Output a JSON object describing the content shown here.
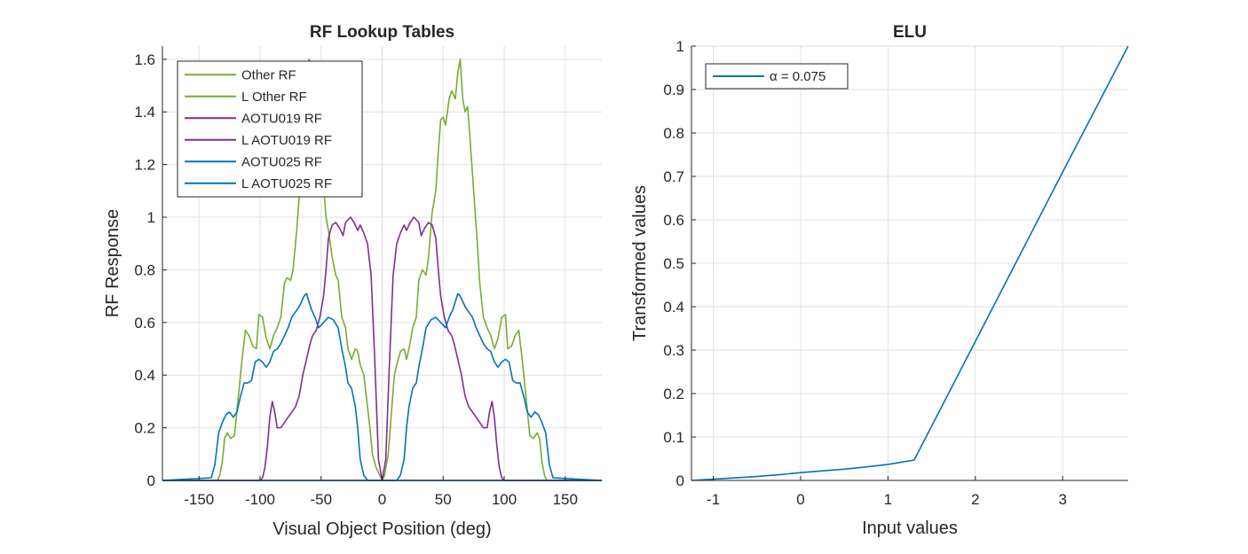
{
  "chart_data": [
    {
      "type": "line",
      "title": "RF Lookup Tables",
      "xlabel": "Visual Object Position (deg)",
      "ylabel": "RF Response",
      "xlim": [
        -180,
        180
      ],
      "ylim": [
        0,
        1.65
      ],
      "xticks": [
        -150,
        -100,
        -50,
        0,
        50,
        100,
        150
      ],
      "yticks": [
        0,
        0.2,
        0.4,
        0.6,
        0.8,
        1,
        1.2,
        1.4,
        1.6
      ],
      "xtick_labels": [
        "-150",
        "-100",
        "-50",
        "0",
        "50",
        "100",
        "150"
      ],
      "ytick_labels": [
        "0",
        "0.2",
        "0.4",
        "0.6",
        "0.8",
        "1",
        "1.2",
        "1.4",
        "1.6"
      ],
      "grid": true,
      "legend_position": "top-left",
      "series": [
        {
          "name": "Other RF",
          "color": "#77AC30",
          "x": [
            0,
            2,
            5,
            8,
            10,
            12,
            15,
            18,
            20,
            22,
            25,
            28,
            30,
            33,
            36,
            38,
            41,
            44,
            46,
            48,
            50,
            52,
            55,
            57,
            60,
            62,
            64,
            66,
            68,
            70,
            72,
            75,
            78,
            80,
            83,
            86,
            89,
            92,
            95,
            98,
            101,
            103,
            106,
            109,
            112,
            115,
            118,
            121,
            124,
            127,
            129,
            131,
            133,
            135,
            180
          ],
          "y": [
            0,
            0.02,
            0.1,
            0.28,
            0.4,
            0.44,
            0.49,
            0.5,
            0.46,
            0.5,
            0.58,
            0.62,
            0.76,
            0.8,
            0.78,
            0.85,
            1.02,
            1.1,
            1.25,
            1.37,
            1.38,
            1.35,
            1.45,
            1.48,
            1.45,
            1.55,
            1.6,
            1.45,
            1.4,
            1.42,
            1.3,
            1.1,
            0.9,
            0.75,
            0.62,
            0.58,
            0.55,
            0.5,
            0.54,
            0.62,
            0.63,
            0.5,
            0.51,
            0.55,
            0.57,
            0.45,
            0.31,
            0.17,
            0.16,
            0.18,
            0.16,
            0.07,
            0.02,
            0,
            0
          ]
        },
        {
          "name": "L Other RF",
          "color": "#77AC30",
          "x": [
            -180,
            -135,
            -133,
            -131,
            -129,
            -127,
            -124,
            -121,
            -118,
            -115,
            -112,
            -109,
            -106,
            -103,
            -101,
            -98,
            -95,
            -92,
            -89,
            -86,
            -83,
            -80,
            -78,
            -75,
            -73,
            -70,
            -66,
            -63,
            -60,
            -57,
            -55,
            -52,
            -50,
            -48,
            -46,
            -44,
            -41,
            -38,
            -36,
            -33,
            -30,
            -28,
            -25,
            -22,
            -20,
            -18,
            -15,
            -12,
            -10,
            -8,
            -5,
            -2,
            0
          ],
          "y": [
            0,
            0,
            0.02,
            0.07,
            0.16,
            0.18,
            0.16,
            0.17,
            0.31,
            0.45,
            0.57,
            0.55,
            0.51,
            0.5,
            0.63,
            0.62,
            0.54,
            0.5,
            0.55,
            0.58,
            0.62,
            0.75,
            0.77,
            0.76,
            0.8,
            0.95,
            1.2,
            1.35,
            1.6,
            1.58,
            1.45,
            1.42,
            1.3,
            1.12,
            1.0,
            0.95,
            0.85,
            0.78,
            0.76,
            0.62,
            0.58,
            0.5,
            0.46,
            0.5,
            0.49,
            0.44,
            0.4,
            0.28,
            0.2,
            0.1,
            0.05,
            0.02,
            0
          ]
        },
        {
          "name": "AOTU019 RF",
          "color": "#7E2F8E",
          "x": [
            -180,
            0,
            3,
            6,
            9,
            12,
            15,
            18,
            20,
            23,
            26,
            30,
            32,
            35,
            38,
            41,
            44,
            46,
            48,
            51,
            54,
            57,
            59,
            62,
            65,
            68,
            71,
            74,
            77,
            80,
            83,
            86,
            88,
            90,
            92,
            94,
            96,
            98,
            100,
            180
          ],
          "y": [
            0,
            0,
            0.08,
            0.45,
            0.78,
            0.9,
            0.94,
            0.97,
            0.95,
            0.98,
            1.0,
            0.98,
            0.93,
            0.96,
            0.98,
            0.97,
            0.92,
            0.8,
            0.7,
            0.62,
            0.57,
            0.55,
            0.52,
            0.46,
            0.4,
            0.32,
            0.28,
            0.26,
            0.24,
            0.22,
            0.2,
            0.2,
            0.26,
            0.3,
            0.24,
            0.13,
            0.05,
            0.01,
            0,
            0
          ]
        },
        {
          "name": "L AOTU019 RF",
          "color": "#7E2F8E",
          "x": [
            -180,
            -100,
            -98,
            -96,
            -94,
            -92,
            -90,
            -88,
            -86,
            -83,
            -80,
            -77,
            -74,
            -71,
            -68,
            -65,
            -62,
            -59,
            -57,
            -54,
            -51,
            -48,
            -46,
            -44,
            -41,
            -38,
            -35,
            -32,
            -30,
            -26,
            -23,
            -20,
            -18,
            -15,
            -12,
            -9,
            -6,
            -3,
            0,
            180
          ],
          "y": [
            0,
            0,
            0.01,
            0.05,
            0.13,
            0.24,
            0.3,
            0.26,
            0.2,
            0.2,
            0.22,
            0.24,
            0.26,
            0.28,
            0.32,
            0.4,
            0.46,
            0.52,
            0.55,
            0.57,
            0.62,
            0.7,
            0.8,
            0.92,
            0.97,
            0.98,
            0.96,
            0.93,
            0.98,
            1.0,
            0.98,
            0.95,
            0.97,
            0.94,
            0.9,
            0.78,
            0.45,
            0.08,
            0,
            0
          ]
        },
        {
          "name": "AOTU025 RF",
          "color": "#0072BD",
          "x": [
            -180,
            0,
            12,
            15,
            18,
            20,
            22,
            25,
            28,
            30,
            33,
            36,
            40,
            44,
            48,
            52,
            55,
            58,
            60,
            62,
            64,
            66,
            68,
            71,
            74,
            77,
            80,
            83,
            86,
            89,
            92,
            95,
            98,
            101,
            104,
            107,
            110,
            113,
            116,
            119,
            122,
            125,
            128,
            131,
            134,
            137,
            140,
            180
          ],
          "y": [
            0,
            0,
            0,
            0.02,
            0.08,
            0.2,
            0.28,
            0.35,
            0.37,
            0.43,
            0.5,
            0.58,
            0.61,
            0.62,
            0.6,
            0.58,
            0.62,
            0.65,
            0.68,
            0.71,
            0.7,
            0.68,
            0.66,
            0.64,
            0.62,
            0.58,
            0.55,
            0.52,
            0.5,
            0.49,
            0.45,
            0.43,
            0.45,
            0.46,
            0.45,
            0.38,
            0.37,
            0.37,
            0.32,
            0.26,
            0.24,
            0.26,
            0.25,
            0.22,
            0.18,
            0.06,
            0.01,
            0
          ]
        },
        {
          "name": "L AOTU025 RF",
          "color": "#0072BD",
          "x": [
            -180,
            -140,
            -137,
            -134,
            -131,
            -128,
            -125,
            -122,
            -119,
            -116,
            -113,
            -110,
            -107,
            -104,
            -101,
            -98,
            -95,
            -92,
            -89,
            -86,
            -83,
            -80,
            -77,
            -74,
            -71,
            -68,
            -66,
            -64,
            -62,
            -60,
            -58,
            -55,
            -52,
            -48,
            -44,
            -40,
            -36,
            -33,
            -30,
            -28,
            -25,
            -22,
            -20,
            -18,
            -15,
            -12,
            0,
            180
          ],
          "y": [
            0,
            0.01,
            0.06,
            0.18,
            0.22,
            0.25,
            0.26,
            0.24,
            0.26,
            0.32,
            0.37,
            0.37,
            0.38,
            0.45,
            0.46,
            0.45,
            0.43,
            0.45,
            0.49,
            0.5,
            0.52,
            0.55,
            0.58,
            0.62,
            0.64,
            0.66,
            0.68,
            0.7,
            0.71,
            0.68,
            0.65,
            0.62,
            0.58,
            0.6,
            0.62,
            0.61,
            0.58,
            0.5,
            0.43,
            0.37,
            0.35,
            0.28,
            0.2,
            0.08,
            0.02,
            0,
            0,
            0
          ]
        }
      ]
    },
    {
      "type": "line",
      "title": "ELU",
      "xlabel": "Input values",
      "ylabel": "Transformed values",
      "xlim": [
        -1.25,
        3.75
      ],
      "ylim": [
        0,
        1
      ],
      "xticks": [
        -1,
        0,
        1,
        2,
        3
      ],
      "yticks": [
        0,
        0.1,
        0.2,
        0.3,
        0.4,
        0.5,
        0.6,
        0.7,
        0.8,
        0.9,
        1
      ],
      "xtick_labels": [
        "-1",
        "0",
        "1",
        "2",
        "3"
      ],
      "ytick_labels": [
        "0",
        "0.1",
        "0.2",
        "0.3",
        "0.4",
        "0.5",
        "0.6",
        "0.7",
        "0.8",
        "0.9",
        "1"
      ],
      "grid": true,
      "legend_position": "top-left",
      "series": [
        {
          "name": "α = 0.075",
          "color": "#0072BD",
          "x": [
            -1.25,
            -1.0,
            -0.75,
            -0.5,
            -0.25,
            0.0,
            0.25,
            0.5,
            0.75,
            1.0,
            1.3,
            2.0,
            3.0,
            3.75
          ],
          "y": [
            0.0,
            0.003,
            0.006,
            0.009,
            0.013,
            0.018,
            0.022,
            0.026,
            0.031,
            0.037,
            0.047,
            0.32,
            0.71,
            1.0
          ]
        }
      ]
    }
  ]
}
